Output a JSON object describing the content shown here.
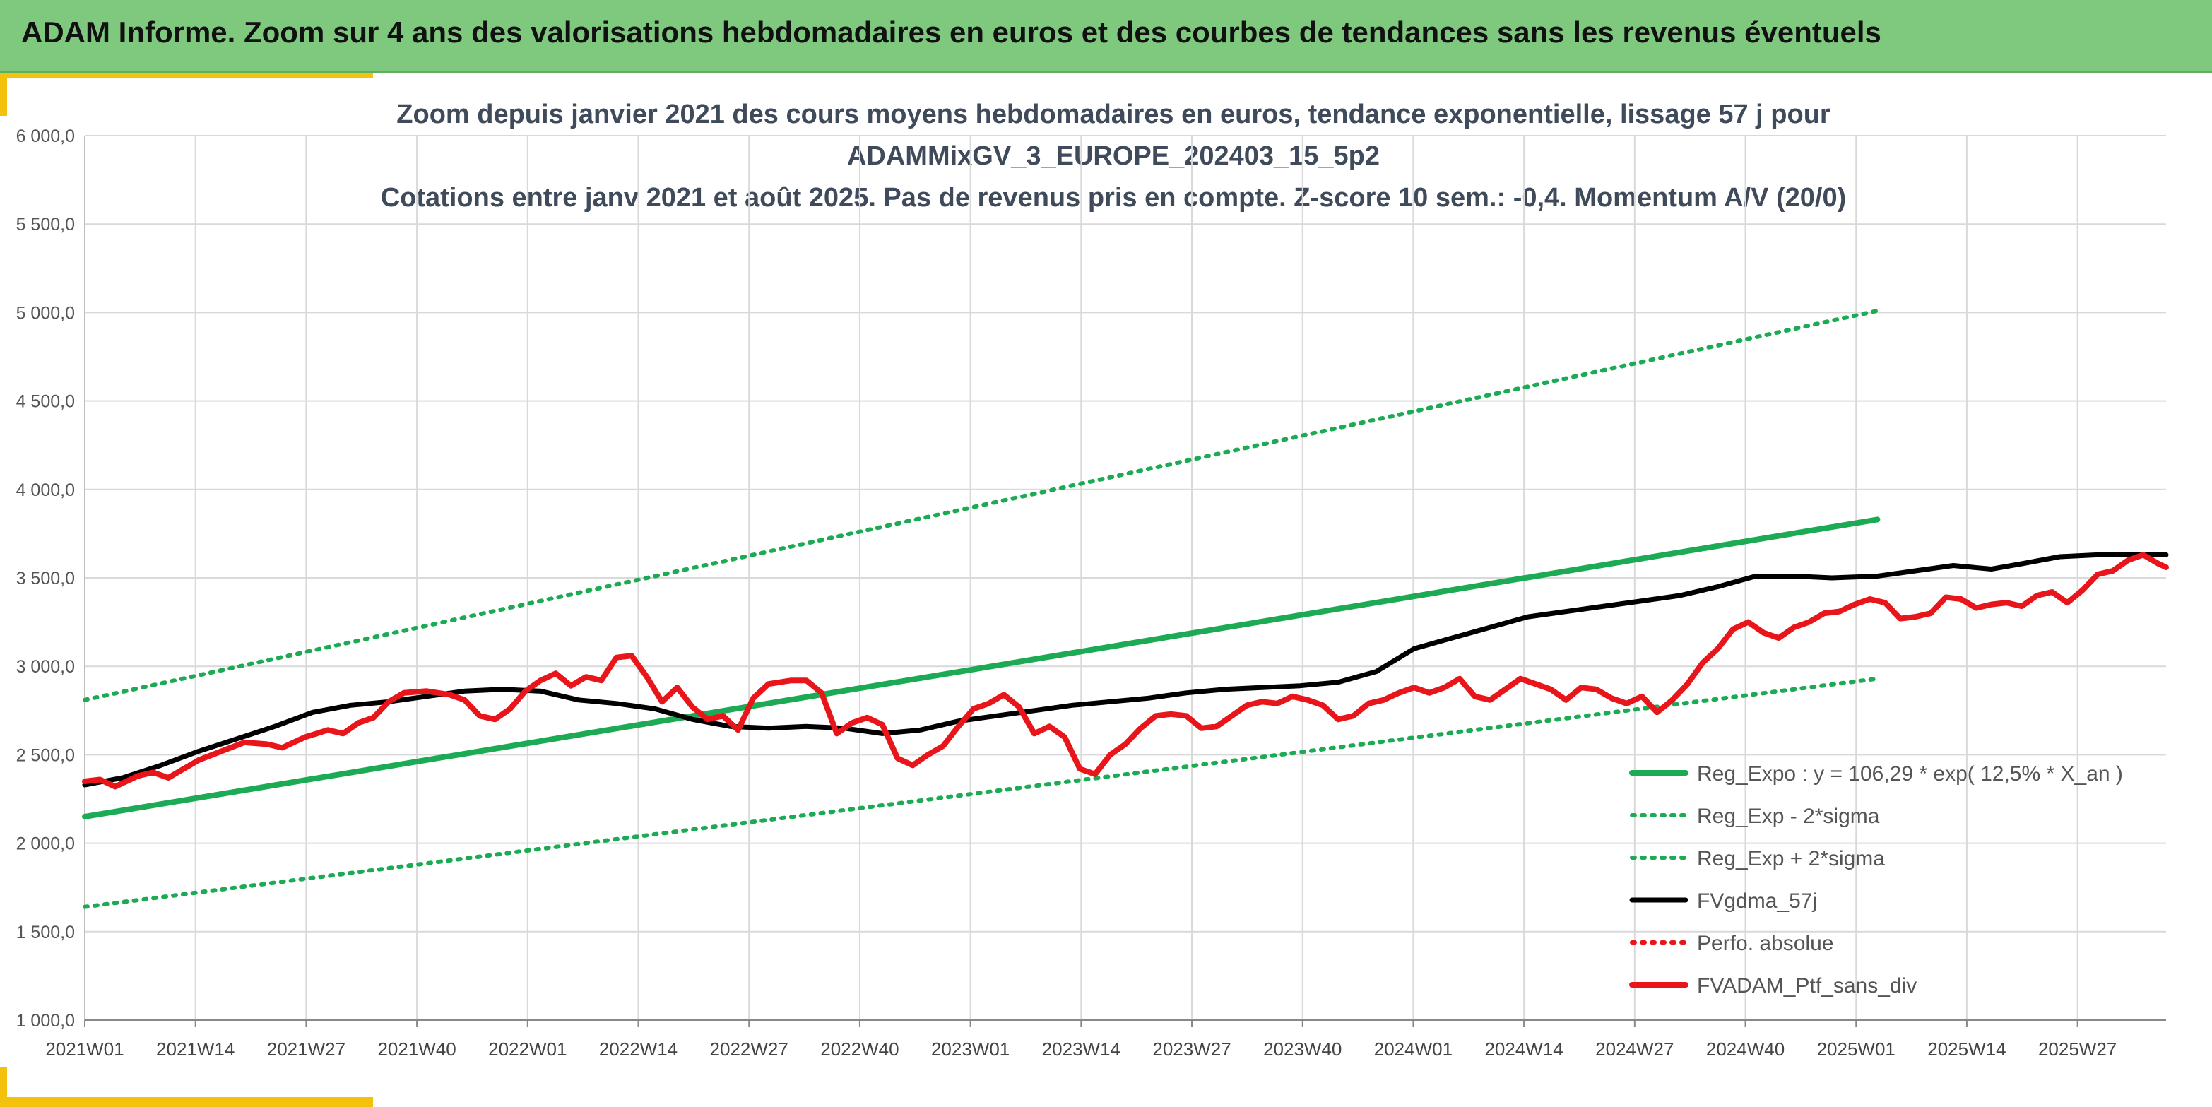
{
  "header": {
    "title": "ADAM Informe. Zoom sur 4 ans des valorisations hebdomadaires en euros et des courbes de tendances sans les revenus éventuels"
  },
  "colors": {
    "header_bg": "#7fc97f",
    "accent": "#f4c20d",
    "trend_green": "#1daa55",
    "band_green": "#1daa55",
    "smooth_black": "#000000",
    "portfolio_red": "#e8161b",
    "perf_red": "#e8161b",
    "grid": "#d9d9d9"
  },
  "chart_data": {
    "type": "line",
    "title_lines": [
      "Zoom depuis janvier 2021 des cours moyens hebdomadaires en euros, tendance exponentielle, lissage 57 j pour",
      "ADAMMixGV_3_EUROPE_202403_15_5p2",
      "Cotations entre janv 2021 et août 2025. Pas de revenus pris en compte. Z-score 10 sem.: -0,4. Momentum A/V (20/0)"
    ],
    "ylim": [
      1000,
      6000
    ],
    "yticks": [
      1000,
      1500,
      2000,
      2500,
      3000,
      3500,
      4000,
      4500,
      5000,
      5500,
      6000
    ],
    "ytick_labels": [
      "1 000,0",
      "1 500,0",
      "2 000,0",
      "2 500,0",
      "3 000,0",
      "3 500,0",
      "4 000,0",
      "4 500,0",
      "5 000,0",
      "5 500,0",
      "6 000,0"
    ],
    "x_range_weeks": [
      0,
      236
    ],
    "xtick_labels": [
      "2021W01",
      "2021W14",
      "2021W27",
      "2021W40",
      "2022W01",
      "2022W14",
      "2022W27",
      "2022W40",
      "2023W01",
      "2023W14",
      "2023W27",
      "2023W40",
      "2024W01",
      "2024W14",
      "2024W27",
      "2024W40",
      "2025W01",
      "2025W14",
      "2025W27"
    ],
    "grid": true,
    "legend_position": "bottom-right",
    "series": [
      {
        "key": "reg_expo",
        "name": "Reg_Expo : y = 106,29 * exp( 12,5% *  X_an )",
        "style": "solid",
        "points": [
          [
            0,
            2150
          ],
          [
            236,
            3830
          ]
        ]
      },
      {
        "key": "reg_minus",
        "name": "Reg_Exp - 2*sigma",
        "style": "dotted",
        "points": [
          [
            0,
            1640
          ],
          [
            236,
            2930
          ]
        ]
      },
      {
        "key": "reg_plus",
        "name": "Reg_Exp + 2*sigma",
        "style": "dotted",
        "points": [
          [
            0,
            2810
          ],
          [
            236,
            5010
          ]
        ]
      },
      {
        "key": "fvgdma",
        "name": "FVgdma_57j",
        "style": "solid",
        "points": [
          [
            0,
            2330
          ],
          [
            5,
            2370
          ],
          [
            10,
            2440
          ],
          [
            15,
            2520
          ],
          [
            20,
            2590
          ],
          [
            25,
            2660
          ],
          [
            30,
            2740
          ],
          [
            35,
            2780
          ],
          [
            40,
            2800
          ],
          [
            45,
            2830
          ],
          [
            50,
            2860
          ],
          [
            55,
            2870
          ],
          [
            60,
            2860
          ],
          [
            65,
            2810
          ],
          [
            70,
            2790
          ],
          [
            75,
            2760
          ],
          [
            80,
            2700
          ],
          [
            85,
            2660
          ],
          [
            90,
            2650
          ],
          [
            95,
            2660
          ],
          [
            100,
            2650
          ],
          [
            105,
            2620
          ],
          [
            110,
            2640
          ],
          [
            115,
            2690
          ],
          [
            120,
            2720
          ],
          [
            125,
            2750
          ],
          [
            130,
            2780
          ],
          [
            135,
            2800
          ],
          [
            140,
            2820
          ],
          [
            145,
            2850
          ],
          [
            150,
            2870
          ],
          [
            155,
            2880
          ],
          [
            160,
            2890
          ],
          [
            165,
            2910
          ],
          [
            170,
            2970
          ],
          [
            175,
            3100
          ],
          [
            180,
            3160
          ],
          [
            185,
            3220
          ],
          [
            190,
            3280
          ],
          [
            195,
            3310
          ],
          [
            200,
            3340
          ],
          [
            205,
            3370
          ],
          [
            210,
            3400
          ],
          [
            215,
            3450
          ],
          [
            220,
            3510
          ],
          [
            225,
            3510
          ],
          [
            230,
            3500
          ],
          [
            236,
            3510
          ],
          [
            241,
            3540
          ],
          [
            246,
            3570
          ],
          [
            251,
            3550
          ],
          [
            255,
            3580
          ],
          [
            260,
            3620
          ],
          [
            265,
            3630
          ],
          [
            270,
            3630
          ],
          [
            274,
            3630
          ]
        ]
      },
      {
        "key": "perf_abs",
        "name": "Perfo. absolue",
        "style": "dotted",
        "points": []
      },
      {
        "key": "fvadam",
        "name": "FVADAM_Ptf_sans_div",
        "style": "solid",
        "points": [
          [
            0,
            2350
          ],
          [
            2,
            2360
          ],
          [
            4,
            2320
          ],
          [
            7,
            2380
          ],
          [
            9,
            2400
          ],
          [
            11,
            2370
          ],
          [
            13,
            2420
          ],
          [
            15,
            2470
          ],
          [
            18,
            2520
          ],
          [
            21,
            2570
          ],
          [
            24,
            2560
          ],
          [
            26,
            2540
          ],
          [
            29,
            2600
          ],
          [
            32,
            2640
          ],
          [
            34,
            2620
          ],
          [
            36,
            2680
          ],
          [
            38,
            2710
          ],
          [
            40,
            2800
          ],
          [
            42,
            2850
          ],
          [
            45,
            2860
          ],
          [
            48,
            2840
          ],
          [
            50,
            2810
          ],
          [
            52,
            2720
          ],
          [
            54,
            2700
          ],
          [
            56,
            2760
          ],
          [
            58,
            2860
          ],
          [
            60,
            2920
          ],
          [
            62,
            2960
          ],
          [
            64,
            2890
          ],
          [
            66,
            2940
          ],
          [
            68,
            2920
          ],
          [
            70,
            3050
          ],
          [
            72,
            3060
          ],
          [
            74,
            2940
          ],
          [
            76,
            2800
          ],
          [
            78,
            2880
          ],
          [
            80,
            2770
          ],
          [
            82,
            2700
          ],
          [
            84,
            2720
          ],
          [
            86,
            2640
          ],
          [
            88,
            2820
          ],
          [
            90,
            2900
          ],
          [
            93,
            2920
          ],
          [
            95,
            2920
          ],
          [
            97,
            2850
          ],
          [
            99,
            2620
          ],
          [
            101,
            2680
          ],
          [
            103,
            2710
          ],
          [
            105,
            2670
          ],
          [
            107,
            2480
          ],
          [
            109,
            2440
          ],
          [
            111,
            2500
          ],
          [
            113,
            2550
          ],
          [
            115,
            2660
          ],
          [
            117,
            2760
          ],
          [
            119,
            2790
          ],
          [
            121,
            2840
          ],
          [
            123,
            2770
          ],
          [
            125,
            2620
          ],
          [
            127,
            2660
          ],
          [
            129,
            2600
          ],
          [
            131,
            2420
          ],
          [
            133,
            2390
          ],
          [
            135,
            2500
          ],
          [
            137,
            2560
          ],
          [
            139,
            2650
          ],
          [
            141,
            2720
          ],
          [
            143,
            2730
          ],
          [
            145,
            2720
          ],
          [
            147,
            2650
          ],
          [
            149,
            2660
          ],
          [
            151,
            2720
          ],
          [
            153,
            2780
          ],
          [
            155,
            2800
          ],
          [
            157,
            2790
          ],
          [
            159,
            2830
          ],
          [
            161,
            2810
          ],
          [
            163,
            2780
          ],
          [
            165,
            2700
          ],
          [
            167,
            2720
          ],
          [
            169,
            2790
          ],
          [
            171,
            2810
          ],
          [
            173,
            2850
          ],
          [
            175,
            2880
          ],
          [
            177,
            2850
          ],
          [
            179,
            2880
          ],
          [
            181,
            2930
          ],
          [
            183,
            2830
          ],
          [
            185,
            2810
          ],
          [
            187,
            2870
          ],
          [
            189,
            2930
          ],
          [
            191,
            2900
          ],
          [
            193,
            2870
          ],
          [
            195,
            2810
          ],
          [
            197,
            2880
          ],
          [
            199,
            2870
          ],
          [
            201,
            2820
          ],
          [
            203,
            2790
          ],
          [
            205,
            2830
          ],
          [
            207,
            2740
          ],
          [
            209,
            2810
          ],
          [
            211,
            2900
          ],
          [
            213,
            3020
          ],
          [
            215,
            3100
          ],
          [
            217,
            3210
          ],
          [
            219,
            3250
          ],
          [
            221,
            3190
          ],
          [
            223,
            3160
          ],
          [
            225,
            3220
          ],
          [
            227,
            3250
          ],
          [
            229,
            3300
          ],
          [
            231,
            3310
          ],
          [
            233,
            3350
          ],
          [
            235,
            3380
          ],
          [
            237,
            3360
          ],
          [
            239,
            3270
          ],
          [
            241,
            3280
          ],
          [
            243,
            3300
          ],
          [
            245,
            3390
          ],
          [
            247,
            3380
          ],
          [
            249,
            3330
          ],
          [
            251,
            3350
          ],
          [
            253,
            3360
          ],
          [
            255,
            3340
          ],
          [
            257,
            3400
          ],
          [
            259,
            3420
          ],
          [
            261,
            3360
          ],
          [
            263,
            3430
          ],
          [
            265,
            3520
          ],
          [
            267,
            3540
          ],
          [
            269,
            3600
          ],
          [
            271,
            3630
          ],
          [
            273,
            3580
          ],
          [
            274,
            3560
          ]
        ]
      }
    ]
  }
}
